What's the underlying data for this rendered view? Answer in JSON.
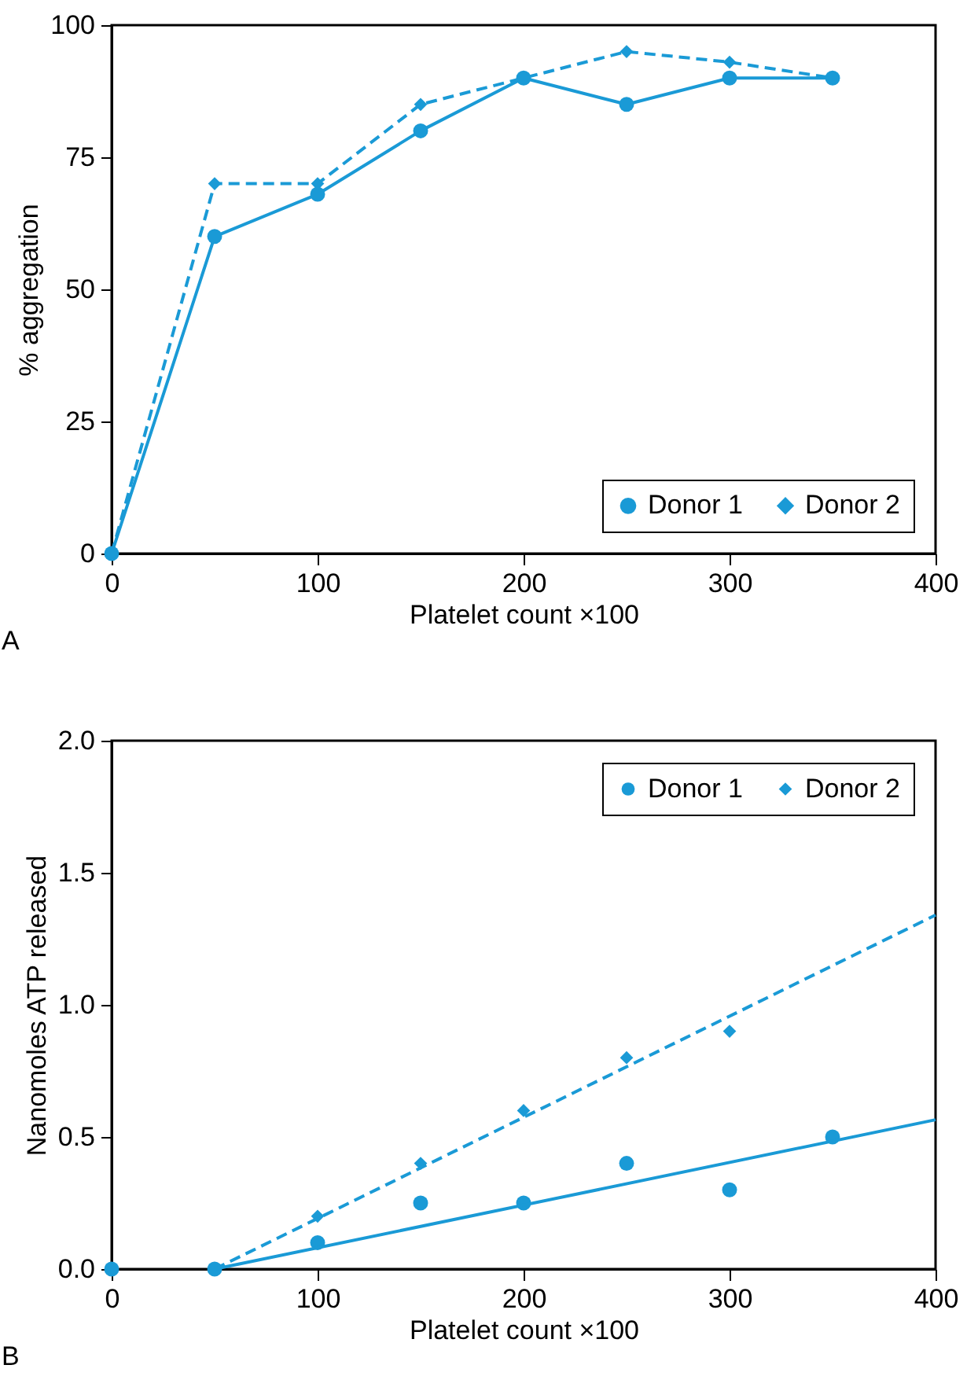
{
  "chart_data": [
    {
      "type": "line",
      "xlabel": "Platelet count ×100",
      "ylabel": "% aggregation",
      "annotations": [
        "A"
      ],
      "xlim": [
        0,
        400
      ],
      "xticks": [
        0,
        100,
        200,
        300,
        400
      ],
      "ylim": [
        0,
        100
      ],
      "yticks": [
        0,
        25,
        50,
        75,
        100
      ],
      "grid": false,
      "legend": "bottom right",
      "series": [
        {
          "name": "Donor 1",
          "color": "#1a9ad6",
          "marker": "circle",
          "line_style": "solid",
          "x": [
            0,
            50,
            100,
            150,
            200,
            250,
            300,
            350
          ],
          "values": [
            0,
            60,
            68,
            80,
            90,
            85,
            90,
            90
          ]
        },
        {
          "name": "Donor 2",
          "color": "#1a9ad6",
          "marker": "diamond",
          "line_style": "dashed",
          "x": [
            0,
            50,
            100,
            150,
            200,
            250,
            300,
            350
          ],
          "values": [
            0,
            70,
            70,
            85,
            90,
            95,
            93,
            90
          ]
        }
      ]
    },
    {
      "type": "scatter",
      "xlabel": "Platelet count ×100",
      "ylabel": "Nanomoles ATP released",
      "annotations": [
        "B"
      ],
      "xlim": [
        0,
        400
      ],
      "xticks": [
        0,
        100,
        200,
        300,
        400
      ],
      "ylim": [
        0,
        2
      ],
      "yticks": [
        {
          "value": 0,
          "label": "0.0"
        },
        0.5,
        {
          "value": 1,
          "label": "1.0"
        },
        1.5,
        {
          "value": 2,
          "label": "2.0"
        }
      ],
      "grid": false,
      "legend": "top right",
      "series": [
        {
          "name": "Donor 1",
          "color": "#1a9ad6",
          "marker": "circle",
          "x": [
            0,
            50,
            100,
            150,
            200,
            250,
            300,
            350
          ],
          "values": [
            0,
            0,
            0.1,
            0.25,
            0.25,
            0.4,
            0.3,
            0.5
          ]
        },
        {
          "name": "Donor 2",
          "color": "#1a9ad6",
          "marker": "diamond",
          "x": [
            100,
            150,
            200,
            250,
            300
          ],
          "values": [
            0.2,
            0.4,
            0.6,
            0.8,
            0.9
          ]
        },
        {
          "type": "line",
          "color": "#1a9ad6",
          "marker": "none",
          "line_style": "solid",
          "x": [
            50,
            400
          ],
          "values": [
            0,
            0.565
          ]
        },
        {
          "type": "line",
          "color": "#1a9ad6",
          "marker": "none",
          "line_style": "dashed",
          "x": [
            50,
            400
          ],
          "values": [
            0,
            1.34
          ]
        }
      ]
    }
  ]
}
